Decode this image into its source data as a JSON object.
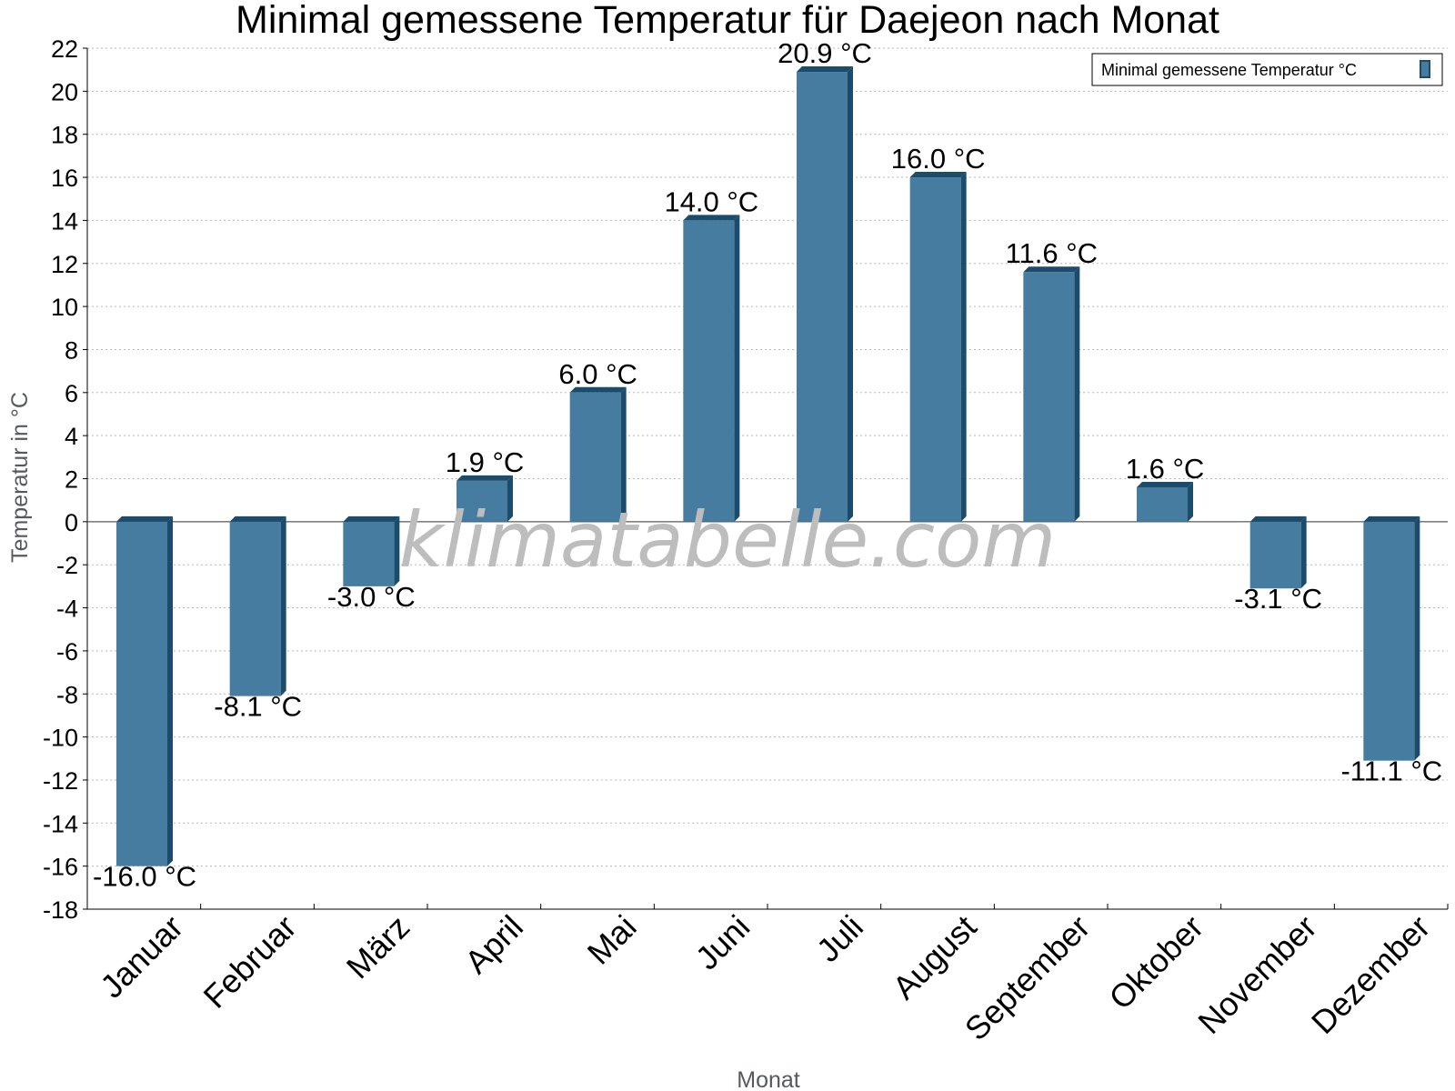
{
  "chart_data": {
    "type": "bar",
    "title": "Minimal gemessene Temperatur für Daejeon nach Monat",
    "xlabel": "Monat",
    "ylabel": "Temperatur in °C",
    "ylim": [
      -18,
      22
    ],
    "ytick_step": 2,
    "grid": true,
    "legend_position": "top-right",
    "watermark": "klimatabelle.com",
    "unit": "°C",
    "categories": [
      "Januar",
      "Februar",
      "März",
      "April",
      "Mai",
      "Juni",
      "Juli",
      "August",
      "September",
      "Oktober",
      "November",
      "Dezember"
    ],
    "series": [
      {
        "name": "Minimal gemessene Temperatur °C",
        "values": [
          -16.0,
          -8.1,
          -3.0,
          1.9,
          6.0,
          14.0,
          20.9,
          16.0,
          11.6,
          1.6,
          -3.1,
          -11.1
        ],
        "labels": [
          "-16.0 °C",
          "-8.1 °C",
          "-3.0 °C",
          "1.9 °C",
          "6.0 °C",
          "14.0 °C",
          "20.9 °C",
          "16.0 °C",
          "11.6 °C",
          "1.6 °C",
          "-3.1 °C",
          "-11.1 °C"
        ]
      }
    ],
    "colors": {
      "bar_face": "#467c9f",
      "bar_side": "#1c4c6c",
      "axis": "#000000"
    }
  }
}
